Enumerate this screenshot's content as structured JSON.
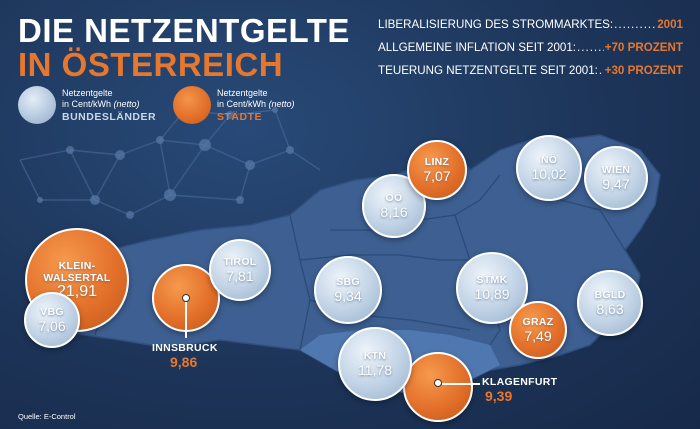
{
  "header": {
    "title_line1": "DIE NETZENTGELTE",
    "title_line2": "IN ÖSTERREICH"
  },
  "facts": [
    {
      "label": "LIBERALISIERUNG DES STROMMARKTES:",
      "value": "2001"
    },
    {
      "label": "ALLGEMEINE INFLATION SEIT 2001:",
      "value": "+70 PROZENT"
    },
    {
      "label": "TEUERUNG NETZENTGELTE SEIT 2001:",
      "value": "+30 PROZENT"
    }
  ],
  "legend": {
    "states": {
      "line1": "Netzentgelte",
      "line2_a": "in Cent/kWh ",
      "line2_b": "(netto)",
      "caption": "BUNDESLÄNDER"
    },
    "cities": {
      "line1": "Netzentgelte",
      "line2_a": "in Cent/kWh ",
      "line2_b": "(netto)",
      "caption": "STÄDTE"
    }
  },
  "bubbles": {
    "kleinwalsertal": {
      "name1": "KLEIN-",
      "name2": "WALSERTAL",
      "value": "21,91"
    },
    "vbg": {
      "name": "VBG",
      "value": "7,06"
    },
    "tirol": {
      "name": "TIROL",
      "value": "7,81"
    },
    "innsbruck": {
      "name": "INNSBRUCK",
      "value": "9,86"
    },
    "sbg": {
      "name": "SBG",
      "value": "9,34"
    },
    "ooe": {
      "name": "OÖ",
      "value": "8,16"
    },
    "linz": {
      "name": "LINZ",
      "value": "7,07"
    },
    "noe": {
      "name": "NÖ",
      "value": "10,02"
    },
    "wien": {
      "name": "WIEN",
      "value": "9,47"
    },
    "stmk": {
      "name": "STMK",
      "value": "10,89"
    },
    "graz": {
      "name": "GRAZ",
      "value": "7,49"
    },
    "bgld": {
      "name": "BGLD",
      "value": "8,63"
    },
    "ktn": {
      "name": "KTN",
      "value": "11,78"
    },
    "klagenfurt": {
      "name": "KLAGENFURT",
      "value": "9,39"
    }
  },
  "source": "Quelle: E-Control",
  "colors": {
    "background": "#1c3358",
    "accent": "#e8772e",
    "map": "#3d5f91",
    "map_highlight": "#5078b0"
  }
}
